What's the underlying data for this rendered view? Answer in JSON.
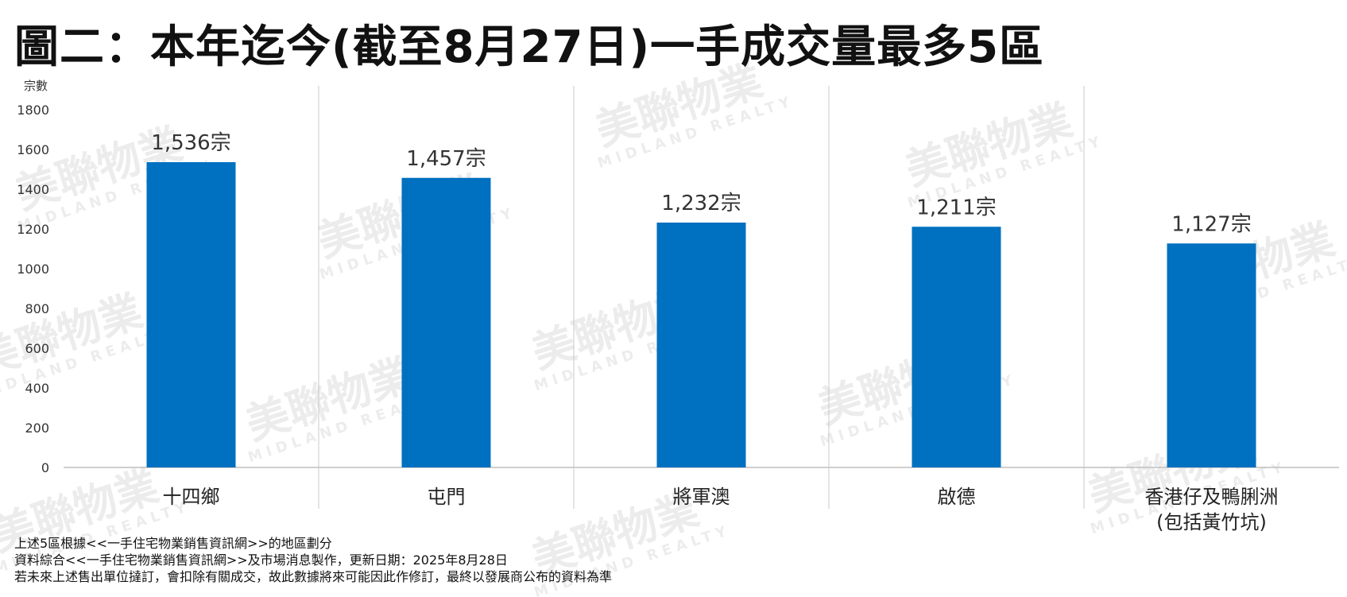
{
  "chart_data": {
    "type": "bar",
    "title": "圖二：本年迄今(截至8月27日)一手成交量最多5區",
    "ylabel": "宗數",
    "xlabel": "",
    "ylim": [
      0,
      1800
    ],
    "yticks": [
      0,
      200,
      400,
      600,
      800,
      1000,
      1200,
      1400,
      1600,
      1800
    ],
    "categories": [
      [
        "十四鄉"
      ],
      [
        "屯門"
      ],
      [
        "將軍澳"
      ],
      [
        "啟德"
      ],
      [
        "香港仔及鴨脷洲",
        "(包括黃竹坑)"
      ]
    ],
    "values": [
      1536,
      1457,
      1232,
      1211,
      1127
    ],
    "data_labels": [
      "1,536宗",
      "1,457宗",
      "1,232宗",
      "1,211宗",
      "1,127宗"
    ],
    "grid": false,
    "bar_color": "#0070C0"
  },
  "watermark": {
    "brand": "美聯物業",
    "brand_en": "MIDLAND REALTY"
  },
  "notes": [
    "上述5區根據<<一手住宅物業銷售資訊網>>的地區劃分",
    "資料綜合<<一手住宅物業銷售資訊網>>及市場消息製作，更新日期：2025年8月28日",
    "若未來上述售出單位撻訂，會扣除有關成交，故此數據將來可能因此作修訂，最終以發展商公布的資料為準"
  ]
}
